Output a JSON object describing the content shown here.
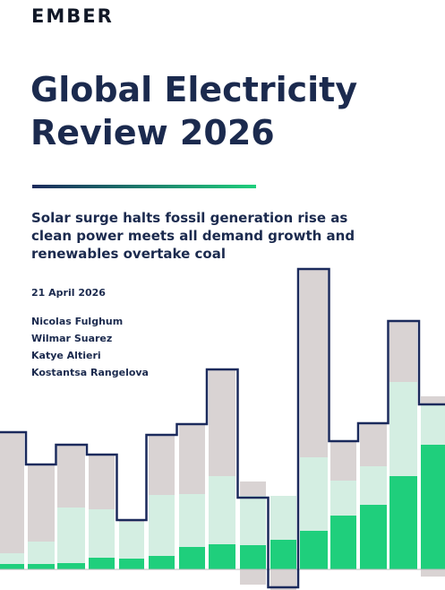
{
  "header": {
    "logo": "EMBER"
  },
  "title": [
    "Global Electricity",
    "Review 2026"
  ],
  "subtitle": [
    "Solar surge halts fossil generation rise as",
    "clean power meets all demand growth and",
    "renewables overtake coal"
  ],
  "date": "21 April 2026",
  "authors": [
    "Nicolas Fulghum",
    "Wilmar Suarez",
    "Katye Altieri",
    "Kostantsa Rangelova"
  ]
}
